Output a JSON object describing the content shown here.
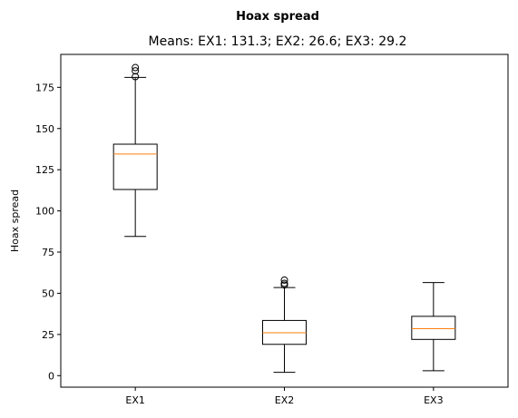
{
  "chart_data": {
    "type": "box",
    "suptitle": "Hoax spread",
    "title": "Means: EX1: 131.3; EX2: 26.6; EX3: 29.2",
    "xlabel": "",
    "ylabel": "Hoax spread",
    "ylim": [
      -7,
      195
    ],
    "yticks": [
      0,
      25,
      50,
      75,
      100,
      125,
      150,
      175
    ],
    "categories": [
      "EX1",
      "EX2",
      "EX3"
    ],
    "boxes": [
      {
        "label": "EX1",
        "whisker_low": 84.5,
        "q1": 113,
        "median": 134.5,
        "q3": 140.5,
        "whisker_high": 181,
        "outliers": [
          181.5,
          185,
          187
        ]
      },
      {
        "label": "EX2",
        "whisker_low": 2,
        "q1": 19,
        "median": 26,
        "q3": 33.5,
        "whisker_high": 53.5,
        "outliers": [
          55,
          56,
          58
        ]
      },
      {
        "label": "EX3",
        "whisker_low": 3,
        "q1": 22,
        "median": 28.5,
        "q3": 36,
        "whisker_high": 56.5,
        "outliers": []
      }
    ],
    "colors": {
      "box": "#000000",
      "median": "#ff7f0e",
      "flier": "#000000"
    },
    "grid": false
  }
}
